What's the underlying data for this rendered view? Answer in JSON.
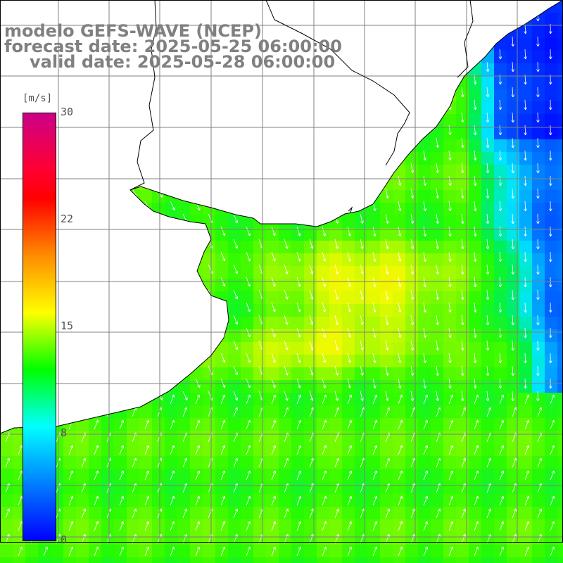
{
  "title": {
    "line1": "modelo GEFS-WAVE (NCEP)",
    "line2": "forecast date: 2025-05-25 06:00:00",
    "line3": "valid date: 2025-05-28 06:00:00"
  },
  "colorbar": {
    "unit": "[m/s]",
    "labels": [
      "30",
      "22",
      "15",
      "8",
      "0"
    ],
    "min": 0,
    "max": 30,
    "colors": [
      "#0000ff",
      "#00ffff",
      "#00ff00",
      "#ffff00",
      "#ff8c00",
      "#ff0000",
      "#cc0088"
    ]
  },
  "map": {
    "land_color": "#ffffff",
    "grid_color": "#808080",
    "coast_color": "#000000",
    "arrow_color": "#ffffff"
  }
}
